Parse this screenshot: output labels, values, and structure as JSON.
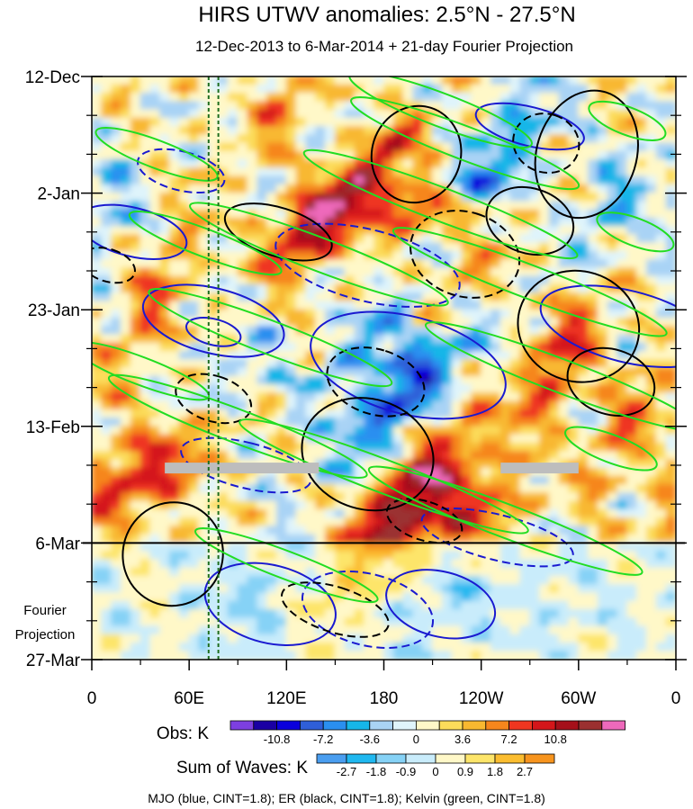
{
  "chart_data": {
    "type": "heatmap",
    "title": "HIRS UTWV anomalies: 2.5°N - 27.5°N",
    "subtitle": "12-Dec-2013 to 6-Mar-2014 + 21-day Fourier Projection",
    "x_ticks": [
      "0",
      "60E",
      "120E",
      "180",
      "120W",
      "60W",
      "0"
    ],
    "y_ticks": [
      "12-Dec",
      "2-Jan",
      "23-Jan",
      "13-Feb",
      "6-Mar",
      "27-Mar"
    ],
    "x_range_deg": [
      0,
      360
    ],
    "y_range_days": [
      0,
      105
    ],
    "observation_end_day": 84,
    "fourier_label": [
      "Fourier",
      "Projection"
    ],
    "reference_lines_deg": [
      72,
      78
    ],
    "missing_segments": [
      {
        "day": 70.5,
        "lon_start": 45,
        "lon_end": 140
      },
      {
        "day": 70.5,
        "lon_start": 252,
        "lon_end": 300
      }
    ],
    "obs_legend": {
      "label": "Obs: K",
      "colors": [
        "#7d3fe0",
        "#1a00a3",
        "#0a00dc",
        "#2f5fd8",
        "#2a8ff0",
        "#16b6e8",
        "#a9d3f5",
        "#dff4fb",
        "#fff8c8",
        "#fcdc5a",
        "#f8b830",
        "#f6861c",
        "#ef3620",
        "#d4161a",
        "#a5101a",
        "#9b3030",
        "#ee69bb"
      ],
      "tick_labels": [
        "-10.8",
        "-7.2",
        "-3.6",
        "0",
        "3.6",
        "7.2",
        "10.8"
      ]
    },
    "waves_legend": {
      "label": "Sum of Waves: K",
      "colors": [
        "#4a9ef0",
        "#20b8f0",
        "#86d2f6",
        "#c9ecfb",
        "#fff8c8",
        "#fde56a",
        "#fbbd30",
        "#f7941e"
      ],
      "tick_labels": [
        "-2.7",
        "-1.8",
        "-0.9",
        "0",
        "0.9",
        "1.8",
        "2.7"
      ]
    },
    "footer": "MJO (blue, CINT=1.8); ER (black, CINT=1.8); Kelvin (green, CINT=1.8)",
    "contour_series": [
      {
        "name": "MJO",
        "color": "#1a1ad0",
        "cint": 1.8
      },
      {
        "name": "ER",
        "color": "#000000",
        "cint": 1.8
      },
      {
        "name": "Kelvin",
        "color": "#22dd22",
        "cint": 1.8
      }
    ],
    "anomaly_features": [
      {
        "lon": 140,
        "day": 26,
        "a": 0.5,
        "b": 9,
        "tilt_lon_per_day": -2.2,
        "v": 12
      },
      {
        "lon": 205,
        "day": 21,
        "a": 0.35,
        "b": 6,
        "tilt_lon_per_day": -3.0,
        "v": 13
      },
      {
        "lon": 180,
        "day": 15,
        "a": 0.7,
        "b": 8,
        "tilt_lon_per_day": -2.5,
        "v": 8
      },
      {
        "lon": 220,
        "day": 19,
        "a": 0.3,
        "b": 4,
        "tilt_lon_per_day": -3,
        "v": -12
      },
      {
        "lon": 195,
        "day": 56,
        "a": 0.4,
        "b": 13,
        "tilt_lon_per_day": -2.5,
        "v": -9
      },
      {
        "lon": 168,
        "day": 48,
        "a": 0.6,
        "b": 10,
        "tilt_lon_per_day": -3.0,
        "v": -5
      },
      {
        "lon": 80,
        "day": 58,
        "a": 0.5,
        "b": 12,
        "tilt_lon_per_day": -2.2,
        "v": -4
      },
      {
        "lon": 195,
        "day": 76,
        "a": 0.45,
        "b": 13,
        "tilt_lon_per_day": -2.5,
        "v": 12
      },
      {
        "lon": 230,
        "day": 79,
        "a": 0.35,
        "b": 8,
        "tilt_lon_per_day": -2.5,
        "v": 7
      },
      {
        "lon": 290,
        "day": 50,
        "a": 0.55,
        "b": 14,
        "tilt_lon_per_day": -1.5,
        "v": 7
      },
      {
        "lon": 40,
        "day": 40,
        "a": 0.7,
        "b": 15,
        "tilt_lon_per_day": -1.5,
        "v": 5
      },
      {
        "lon": 20,
        "day": 73,
        "a": 0.4,
        "b": 8,
        "tilt_lon_per_day": -2,
        "v": 7
      },
      {
        "lon": 60,
        "day": 67,
        "a": 0.5,
        "b": 10,
        "tilt_lon_per_day": -2,
        "v": 6
      },
      {
        "lon": 330,
        "day": 63,
        "a": 0.6,
        "b": 12,
        "tilt_lon_per_day": -1.8,
        "v": 5
      },
      {
        "lon": 260,
        "day": 10,
        "a": 0.45,
        "b": 10,
        "tilt_lon_per_day": -2,
        "v": -5
      },
      {
        "lon": 318,
        "day": 26,
        "a": 0.5,
        "b": 12,
        "tilt_lon_per_day": -1.5,
        "v": -4
      },
      {
        "lon": 10,
        "day": 25,
        "a": 0.6,
        "b": 12,
        "tilt_lon_per_day": -1,
        "v": -3
      },
      {
        "lon": 120,
        "day": 5,
        "a": 0.7,
        "b": 10,
        "tilt_lon_per_day": -2,
        "v": 5
      },
      {
        "lon": 230,
        "day": 38,
        "a": 0.5,
        "b": 10,
        "tilt_lon_per_day": -2,
        "v": 4
      },
      {
        "lon": 100,
        "day": 95,
        "a": 0.35,
        "b": 8,
        "tilt_lon_per_day": -1.5,
        "v": -2.5
      },
      {
        "lon": 160,
        "day": 95,
        "a": 0.35,
        "b": 8,
        "tilt_lon_per_day": -1.5,
        "v": 2.5
      },
      {
        "lon": 220,
        "day": 95,
        "a": 0.35,
        "b": 8,
        "tilt_lon_per_day": -1.5,
        "v": -2.5
      },
      {
        "lon": 290,
        "day": 95,
        "a": 0.6,
        "b": 10,
        "tilt_lon_per_day": -1,
        "v": -1.2
      },
      {
        "lon": 30,
        "day": 99,
        "a": 0.5,
        "b": 8,
        "tilt_lon_per_day": -1,
        "v": 1.2
      }
    ],
    "mjo_contours": [
      {
        "lon": 195,
        "day": 52,
        "dlon": 30,
        "ddays": 18,
        "tilt": 3.8,
        "dashed": false
      },
      {
        "lon": 75,
        "day": 44,
        "dlon": 20,
        "ddays": 13,
        "tilt": 4.0,
        "dashed": false
      },
      {
        "lon": 75,
        "day": 46,
        "dlon": 8,
        "ddays": 5,
        "tilt": 4.0,
        "dashed": false
      },
      {
        "lon": 270,
        "day": 9,
        "dlon": 12,
        "ddays": 10,
        "tilt": 4.0,
        "dashed": false
      },
      {
        "lon": 110,
        "day": 95,
        "dlon": 24,
        "ddays": 12,
        "tilt": 4.0,
        "dashed": false
      },
      {
        "lon": 215,
        "day": 95,
        "dlon": 20,
        "ddays": 10,
        "tilt": 4.0,
        "dashed": false
      },
      {
        "lon": 330,
        "day": 45,
        "dlon": 22,
        "ddays": 16,
        "tilt": 4.0,
        "dashed": false
      },
      {
        "lon": 25,
        "day": 28,
        "dlon": 15,
        "ddays": 10,
        "tilt": 4.0,
        "dashed": false
      },
      {
        "lon": 170,
        "day": 34,
        "dlon": 22,
        "ddays": 17,
        "tilt": 4.0,
        "dashed": true
      },
      {
        "lon": 55,
        "day": 17,
        "dlon": 12,
        "ddays": 8,
        "tilt": 4.0,
        "dashed": true
      },
      {
        "lon": 170,
        "day": 96,
        "dlon": 22,
        "ddays": 12,
        "tilt": 4.0,
        "dashed": true
      },
      {
        "lon": 250,
        "day": 83,
        "dlon": 14,
        "ddays": 14,
        "tilt": 4.0,
        "dashed": true
      },
      {
        "lon": 95,
        "day": 70,
        "dlon": 14,
        "ddays": 12,
        "tilt": 4.0,
        "dashed": true
      }
    ],
    "er_contours": [
      {
        "lon": 170,
        "day": 68,
        "dlon": 34,
        "ddays": 12,
        "tilt": 3.2,
        "dashed": false
      },
      {
        "lon": 305,
        "day": 14,
        "dlon": 40,
        "ddays": 9,
        "tilt": 3.2,
        "dashed": false
      },
      {
        "lon": 300,
        "day": 45,
        "dlon": 34,
        "ddays": 11,
        "tilt": 3.2,
        "dashed": false
      },
      {
        "lon": 320,
        "day": 55,
        "dlon": 20,
        "ddays": 8,
        "tilt": 3.2,
        "dashed": false
      },
      {
        "lon": 200,
        "day": 14,
        "dlon": 30,
        "ddays": 8,
        "tilt": 3.2,
        "dashed": false
      },
      {
        "lon": 50,
        "day": 86,
        "dlon": 32,
        "ddays": 9,
        "tilt": 3.2,
        "dashed": false
      },
      {
        "lon": 270,
        "day": 26,
        "dlon": 20,
        "ddays": 8,
        "tilt": 3.2,
        "dashed": false
      },
      {
        "lon": 115,
        "day": 28,
        "dlon": 15,
        "ddays": 10,
        "tilt": 3.2,
        "dashed": false
      },
      {
        "lon": 230,
        "day": 32,
        "dlon": 26,
        "ddays": 10,
        "tilt": 3.2,
        "dashed": true
      },
      {
        "lon": 150,
        "day": 96,
        "dlon": 14,
        "ddays": 10,
        "tilt": 3.2,
        "dashed": true
      },
      {
        "lon": 175,
        "day": 55,
        "dlon": 20,
        "ddays": 9,
        "tilt": 3.2,
        "dashed": true
      },
      {
        "lon": 75,
        "day": 58,
        "dlon": 14,
        "ddays": 7,
        "tilt": 3.2,
        "dashed": true
      },
      {
        "lon": 280,
        "day": 12,
        "dlon": 18,
        "ddays": 6,
        "tilt": 3.2,
        "dashed": true
      },
      {
        "lon": 10,
        "day": 34,
        "dlon": 10,
        "ddays": 5,
        "tilt": 3.2,
        "dashed": true
      },
      {
        "lon": 205,
        "day": 80,
        "dlon": 12,
        "ddays": 7,
        "tilt": 3.2,
        "dashed": true
      }
    ],
    "kelvin_contours": [
      {
        "lon": 215,
        "day": 6,
        "dlon": 60,
        "ddays": 3.0,
        "tilt": -0.38,
        "dashed": false
      },
      {
        "lon": 230,
        "day": 12,
        "dlon": 75,
        "ddays": 3.0,
        "tilt": -0.38,
        "dashed": false
      },
      {
        "lon": 215,
        "day": 23,
        "dlon": 90,
        "ddays": 3.0,
        "tilt": -0.38,
        "dashed": false
      },
      {
        "lon": 140,
        "day": 32,
        "dlon": 85,
        "ddays": 3.0,
        "tilt": -0.38,
        "dashed": false
      },
      {
        "lon": 270,
        "day": 37,
        "dlon": 90,
        "ddays": 3.0,
        "tilt": -0.38,
        "dashed": false
      },
      {
        "lon": 110,
        "day": 47,
        "dlon": 80,
        "ddays": 3.0,
        "tilt": -0.38,
        "dashed": false
      },
      {
        "lon": 290,
        "day": 54,
        "dlon": 90,
        "ddays": 3.0,
        "tilt": -0.38,
        "dashed": false
      },
      {
        "lon": 90,
        "day": 63,
        "dlon": 85,
        "ddays": 3.0,
        "tilt": -0.38,
        "dashed": false
      },
      {
        "lon": 180,
        "day": 72,
        "dlon": 95,
        "ddays": 3.0,
        "tilt": -0.38,
        "dashed": false
      },
      {
        "lon": 255,
        "day": 80,
        "dlon": 90,
        "ddays": 3.0,
        "tilt": -0.38,
        "dashed": false
      },
      {
        "lon": 40,
        "day": 14,
        "dlon": 40,
        "ddays": 2.5,
        "tilt": -0.38,
        "dashed": false
      },
      {
        "lon": 70,
        "day": 30,
        "dlon": 50,
        "ddays": 2.5,
        "tilt": -0.38,
        "dashed": false
      },
      {
        "lon": 30,
        "day": 53,
        "dlon": 45,
        "ddays": 2.5,
        "tilt": -0.38,
        "dashed": false
      },
      {
        "lon": 330,
        "day": 8,
        "dlon": 25,
        "ddays": 2.5,
        "tilt": -0.38,
        "dashed": false
      },
      {
        "lon": 335,
        "day": 28,
        "dlon": 25,
        "ddays": 2.5,
        "tilt": -0.38,
        "dashed": false
      },
      {
        "lon": 120,
        "day": 88,
        "dlon": 60,
        "ddays": 2.5,
        "tilt": -0.38,
        "dashed": false
      },
      {
        "lon": 320,
        "day": 67,
        "dlon": 30,
        "ddays": 2.5,
        "tilt": -0.38,
        "dashed": false
      }
    ]
  }
}
